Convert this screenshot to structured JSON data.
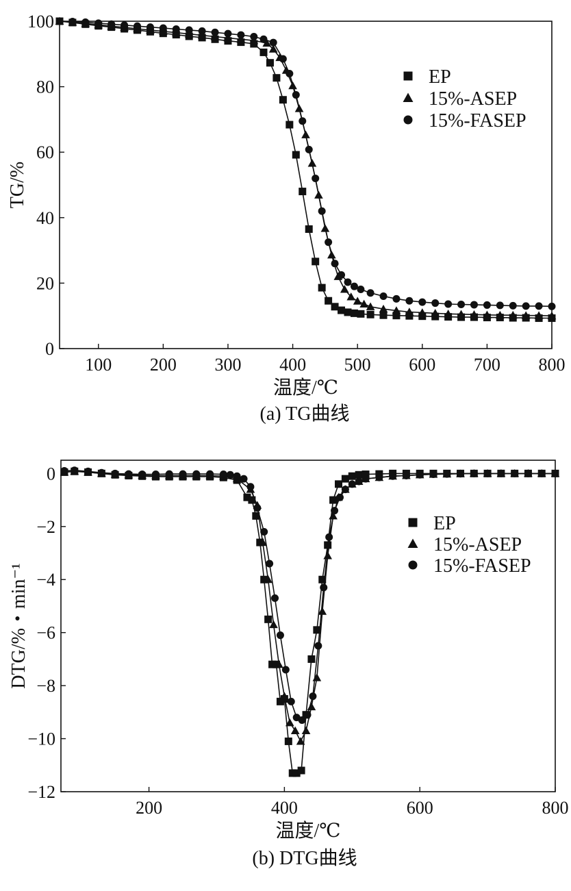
{
  "chart_data": [
    {
      "type": "line",
      "caption": "(a) TG曲线",
      "xlabel": "温度/℃",
      "ylabel": "TG/%",
      "xlim": [
        40,
        800
      ],
      "ylim": [
        0,
        100
      ],
      "xticks": [
        100,
        200,
        300,
        400,
        500,
        600,
        700,
        800
      ],
      "yticks": [
        0,
        20,
        40,
        60,
        80,
        100
      ],
      "xtick_labels": [
        "100",
        "200",
        "300",
        "400",
        "500",
        "600",
        "700",
        "800"
      ],
      "ytick_labels": [
        "0",
        "20",
        "40",
        "60",
        "80",
        "100"
      ],
      "legend_position": "top-right",
      "series": [
        {
          "name": "EP",
          "marker": "square",
          "x": [
            40,
            60,
            80,
            100,
            120,
            140,
            160,
            180,
            200,
            220,
            240,
            260,
            280,
            300,
            320,
            340,
            355,
            365,
            375,
            385,
            395,
            405,
            415,
            425,
            435,
            445,
            455,
            465,
            475,
            485,
            495,
            505,
            520,
            540,
            560,
            580,
            600,
            620,
            640,
            660,
            680,
            700,
            720,
            740,
            760,
            780,
            800
          ],
          "y": [
            100,
            99.6,
            99.1,
            98.6,
            98.2,
            97.7,
            97.3,
            96.8,
            96.3,
            95.9,
            95.4,
            95.0,
            94.5,
            94.0,
            93.6,
            93.1,
            90.5,
            87.3,
            82.7,
            76.0,
            68.4,
            59.2,
            48.0,
            36.5,
            26.6,
            18.6,
            14.6,
            12.8,
            11.7,
            11.1,
            10.8,
            10.6,
            10.4,
            10.2,
            10.1,
            10.0,
            9.9,
            9.8,
            9.7,
            9.6,
            9.6,
            9.5,
            9.5,
            9.4,
            9.4,
            9.3,
            9.3
          ]
        },
        {
          "name": "15%-ASEP",
          "marker": "triangle",
          "x": [
            40,
            60,
            80,
            100,
            120,
            140,
            160,
            180,
            200,
            220,
            240,
            260,
            280,
            300,
            320,
            340,
            360,
            370,
            380,
            390,
            400,
            410,
            420,
            430,
            440,
            450,
            460,
            470,
            480,
            490,
            500,
            510,
            520,
            540,
            560,
            580,
            600,
            620,
            640,
            660,
            680,
            700,
            720,
            740,
            760,
            780,
            800
          ],
          "y": [
            100,
            99.7,
            99.3,
            98.9,
            98.5,
            98.1,
            97.7,
            97.3,
            96.9,
            96.5,
            96.1,
            95.7,
            95.3,
            94.9,
            94.5,
            94.1,
            93.3,
            91.5,
            88.9,
            85.0,
            80.3,
            73.3,
            65.3,
            56.6,
            46.9,
            36.7,
            28.6,
            22.0,
            18.1,
            15.8,
            14.5,
            13.6,
            12.8,
            12.1,
            11.6,
            11.2,
            11.0,
            10.8,
            10.6,
            10.5,
            10.4,
            10.3,
            10.2,
            10.2,
            10.1,
            10.1,
            10.0
          ]
        },
        {
          "name": "15%-FASEP",
          "marker": "circle",
          "x": [
            40,
            60,
            80,
            100,
            120,
            140,
            160,
            180,
            200,
            220,
            240,
            260,
            280,
            300,
            320,
            340,
            355,
            370,
            385,
            395,
            405,
            415,
            425,
            435,
            445,
            455,
            465,
            475,
            485,
            495,
            505,
            520,
            540,
            560,
            580,
            600,
            620,
            640,
            660,
            680,
            700,
            720,
            740,
            760,
            780,
            800
          ],
          "y": [
            100,
            99.9,
            99.7,
            99.4,
            99.1,
            98.8,
            98.5,
            98.2,
            97.9,
            97.6,
            97.3,
            97.0,
            96.6,
            96.2,
            95.8,
            95.3,
            94.5,
            93.5,
            88.5,
            84.0,
            77.5,
            69.5,
            60.8,
            52.0,
            42.0,
            32.5,
            26.0,
            22.5,
            20.3,
            19.0,
            18.1,
            17.0,
            16.0,
            15.2,
            14.6,
            14.2,
            13.9,
            13.6,
            13.5,
            13.4,
            13.3,
            13.2,
            13.1,
            13.0,
            13.0,
            12.9
          ]
        }
      ]
    },
    {
      "type": "line",
      "caption": "(b) DTG曲线",
      "xlabel": "温度/℃",
      "ylabel": "DTG/%・min⁻¹",
      "xlim": [
        70,
        800
      ],
      "ylim": [
        -12,
        0.5
      ],
      "xticks": [
        200,
        400,
        600,
        800
      ],
      "yticks": [
        0,
        -2,
        -4,
        -6,
        -8,
        -10,
        -12
      ],
      "xtick_labels": [
        "200",
        "400",
        "600",
        "800"
      ],
      "ytick_labels": [
        "0",
        "−2",
        "−4",
        "−6",
        "−8",
        "−10",
        "−12"
      ],
      "legend_position": "right",
      "series": [
        {
          "name": "EP",
          "marker": "square",
          "x": [
            75,
            90,
            110,
            130,
            150,
            170,
            190,
            210,
            230,
            250,
            270,
            290,
            310,
            330,
            345,
            352,
            358,
            364,
            370,
            376,
            382,
            388,
            394,
            400,
            406,
            412,
            418,
            425,
            432,
            440,
            448,
            456,
            464,
            472,
            480,
            490,
            500,
            510,
            520,
            540,
            560,
            580,
            600,
            620,
            640,
            660,
            680,
            700,
            720,
            740,
            760,
            780,
            800
          ],
          "y": [
            0.05,
            0.08,
            0.05,
            0,
            -0.05,
            -0.08,
            -0.1,
            -0.12,
            -0.12,
            -0.12,
            -0.12,
            -0.12,
            -0.15,
            -0.25,
            -0.9,
            -1.0,
            -1.6,
            -2.6,
            -4.0,
            -5.5,
            -7.2,
            -7.2,
            -8.6,
            -8.5,
            -10.1,
            -11.3,
            -11.3,
            -11.2,
            -9.1,
            -7.0,
            -5.9,
            -4.0,
            -2.7,
            -1.0,
            -0.4,
            -0.2,
            -0.1,
            -0.05,
            -0.03,
            -0.02,
            0,
            0,
            0,
            0,
            0,
            0,
            0,
            0,
            0,
            0,
            0,
            0,
            0
          ]
        },
        {
          "name": "15%-ASEP",
          "marker": "triangle",
          "x": [
            75,
            90,
            110,
            130,
            150,
            170,
            190,
            210,
            230,
            250,
            270,
            290,
            310,
            330,
            350,
            360,
            368,
            376,
            384,
            392,
            400,
            408,
            416,
            424,
            432,
            440,
            448,
            456,
            464,
            472,
            480,
            490,
            500,
            510,
            520,
            540,
            560,
            580,
            600,
            620,
            640,
            660,
            680,
            700,
            720,
            740,
            760,
            780,
            800
          ],
          "y": [
            0.05,
            0.08,
            0.05,
            0,
            -0.03,
            -0.05,
            -0.07,
            -0.08,
            -0.08,
            -0.08,
            -0.08,
            -0.08,
            -0.1,
            -0.2,
            -0.6,
            -1.2,
            -2.6,
            -4.0,
            -5.7,
            -7.2,
            -8.4,
            -9.4,
            -9.7,
            -10.1,
            -9.7,
            -8.8,
            -7.7,
            -5.2,
            -3.1,
            -1.6,
            -0.9,
            -0.6,
            -0.4,
            -0.3,
            -0.2,
            -0.15,
            -0.1,
            -0.08,
            -0.05,
            -0.03,
            -0.02,
            -0.01,
            0,
            0,
            0,
            0,
            0,
            0,
            0
          ]
        },
        {
          "name": "15%-FASEP",
          "marker": "circle",
          "x": [
            75,
            90,
            110,
            130,
            150,
            170,
            190,
            210,
            230,
            250,
            270,
            290,
            310,
            320,
            330,
            340,
            350,
            360,
            370,
            378,
            386,
            394,
            402,
            410,
            418,
            426,
            434,
            442,
            450,
            458,
            466,
            474,
            482,
            490,
            500,
            510,
            520,
            540,
            560,
            580,
            600,
            620,
            640,
            660,
            680,
            700,
            720,
            740,
            760,
            780,
            800
          ],
          "y": [
            0.1,
            0.12,
            0.08,
            0.03,
            0,
            -0.02,
            -0.03,
            -0.03,
            -0.02,
            -0.02,
            -0.02,
            -0.02,
            -0.03,
            -0.05,
            -0.1,
            -0.2,
            -0.5,
            -1.3,
            -2.2,
            -3.4,
            -4.7,
            -6.1,
            -7.4,
            -8.6,
            -9.2,
            -9.3,
            -9.1,
            -8.4,
            -6.5,
            -4.3,
            -2.4,
            -1.4,
            -0.9,
            -0.6,
            -0.4,
            -0.3,
            -0.2,
            -0.15,
            -0.1,
            -0.08,
            -0.05,
            -0.03,
            -0.02,
            -0.01,
            0,
            0,
            0,
            0,
            0,
            0,
            0
          ]
        }
      ]
    }
  ]
}
